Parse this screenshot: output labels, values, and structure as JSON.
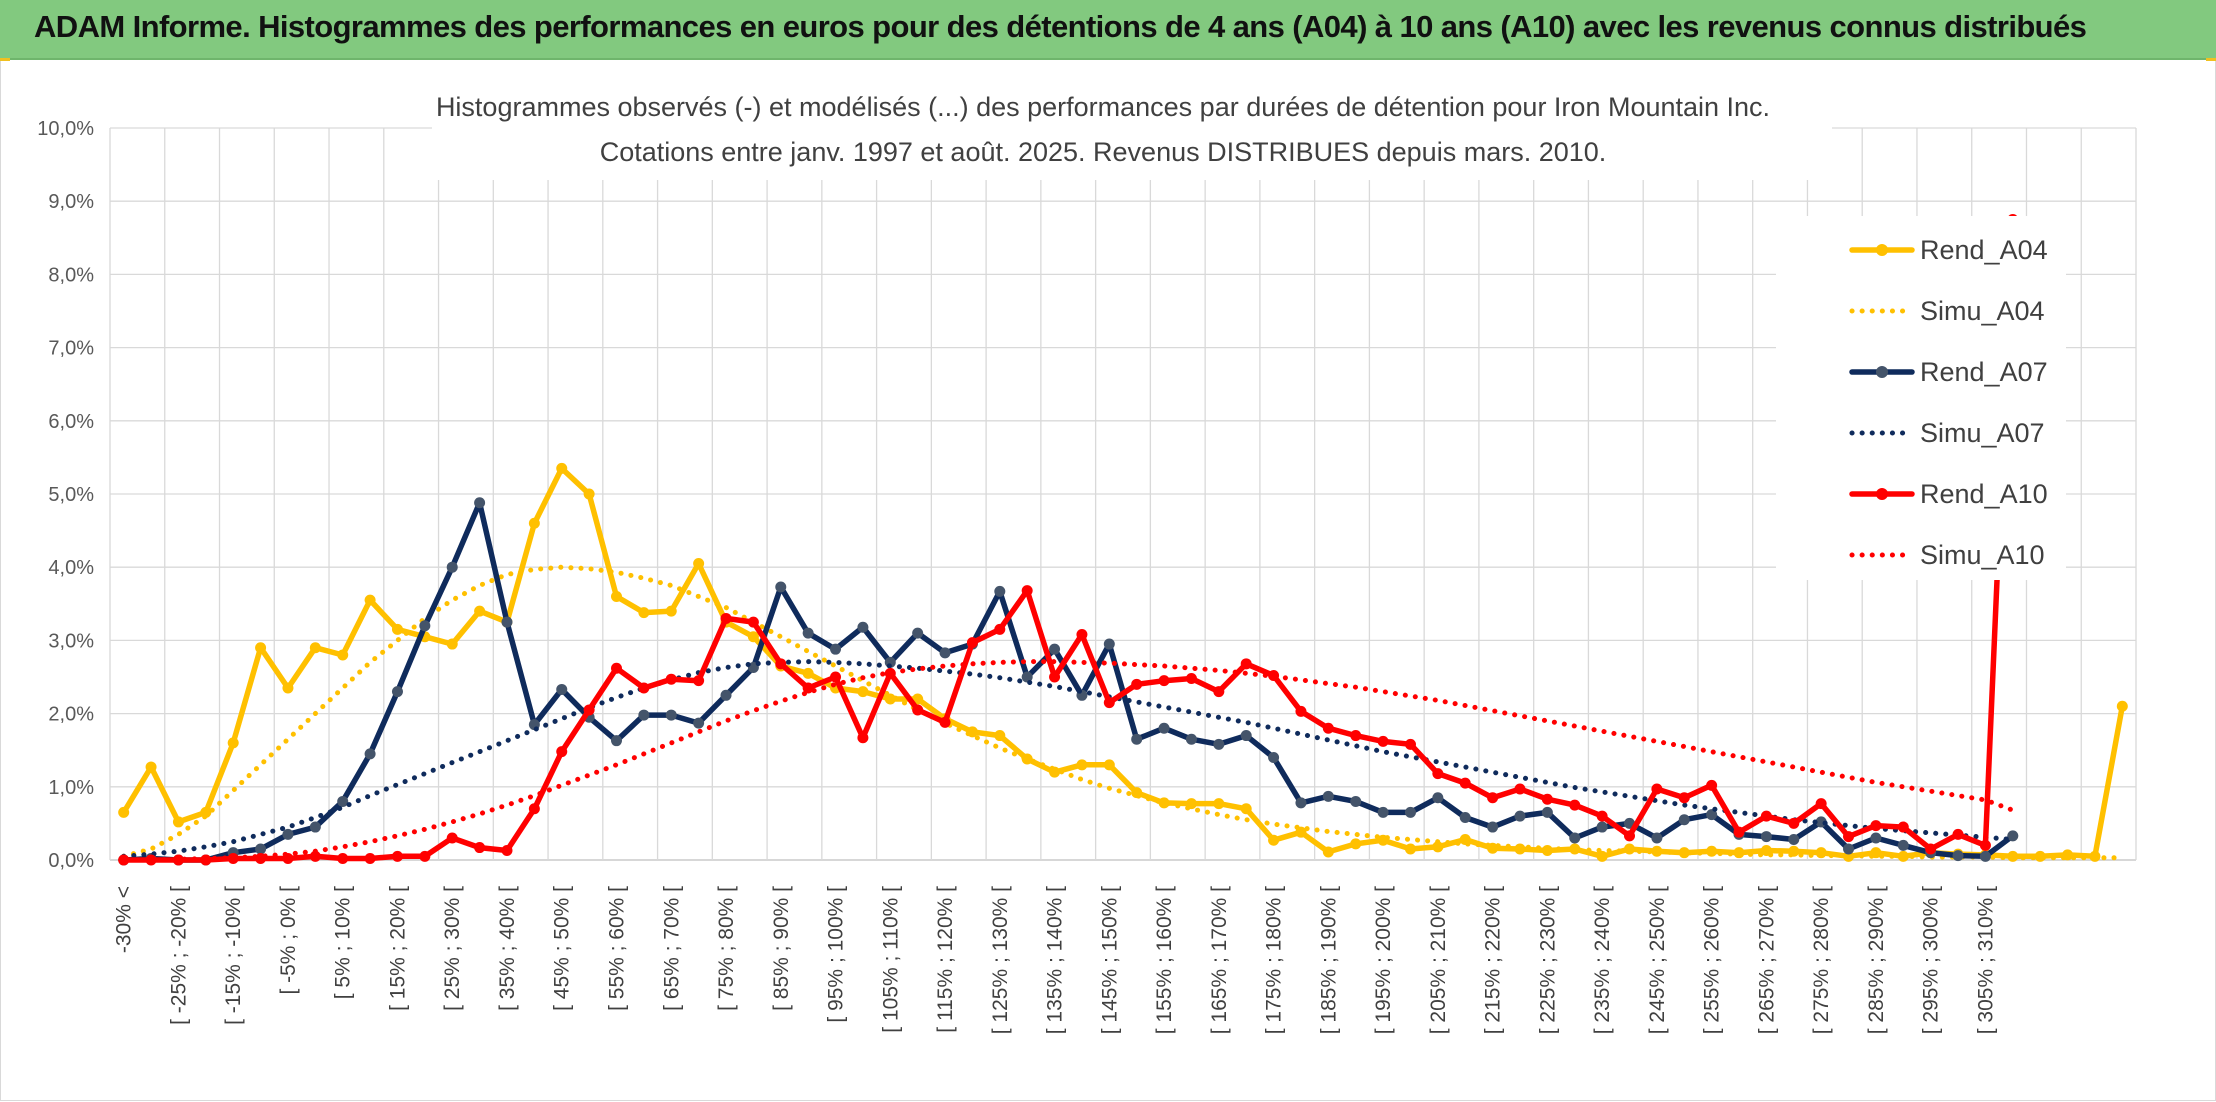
{
  "header": {
    "title": "ADAM Informe. Histogrammes des performances en euros pour des détentions de 4 ans (A04) à 10 ans (A10) avec les revenus connus distribués"
  },
  "chart_data": {
    "type": "line",
    "title": "Histogrammes observés (-) et modélisés (...) des performances par durées de détention pour Iron Mountain Inc.",
    "subtitle": "Cotations entre janv. 1997 et août. 2025. Revenus DISTRIBUES depuis mars. 2010.",
    "xlabel": "",
    "ylabel": "",
    "ylim": [
      0,
      10
    ],
    "yticks": [
      "0,0%",
      "1,0%",
      "2,0%",
      "3,0%",
      "4,0%",
      "5,0%",
      "6,0%",
      "7,0%",
      "8,0%",
      "9,0%",
      "10,0%"
    ],
    "grid": true,
    "legend_position": "right",
    "xtick_labels": [
      "-30% <",
      "[ -25% ; -20% [",
      "[ -15% ; -10% [",
      "[ -5% ; 0% [",
      "[ 5% ; 10% [",
      "[ 15% ; 20% [",
      "[ 25% ; 30% [",
      "[ 35% ; 40% [",
      "[ 45% ; 50% [",
      "[ 55% ; 60% [",
      "[ 65% ; 70% [",
      "[ 75% ; 80% [",
      "[ 85% ; 90% [",
      "[ 95% ; 100% [",
      "[ 105% ; 110% [",
      "[ 115% ; 120% [",
      "[ 125% ; 130% [",
      "[ 135% ; 140% [",
      "[ 145% ; 150% [",
      "[ 155% ; 160% [",
      "[ 165% ; 170% [",
      "[ 175% ; 180% [",
      "[ 185% ; 190% [",
      "[ 195% ; 200% [",
      "[ 205% ; 210% [",
      "[ 215% ; 220% [",
      "[ 225% ; 230% [",
      "[ 235% ; 240% [",
      "[ 245% ; 250% [",
      "[ 255% ; 260% [",
      "[ 265% ; 270% [",
      "[ 275% ; 280% [",
      "[ 285% ; 290% [",
      "[ 295% ; 300% [",
      "[ 305% ; 310% ["
    ],
    "series": [
      {
        "name": "Rend_A04",
        "style": "solid",
        "color": "#ffc000",
        "values": [
          0.65,
          1.27,
          0.52,
          0.65,
          1.6,
          2.9,
          2.35,
          2.9,
          2.8,
          3.55,
          3.15,
          3.05,
          2.95,
          3.4,
          3.25,
          4.6,
          5.35,
          5.0,
          3.6,
          3.38,
          3.4,
          4.05,
          3.25,
          3.05,
          2.65,
          2.55,
          2.35,
          2.3,
          2.2,
          2.2,
          1.93,
          1.75,
          1.7,
          1.38,
          1.2,
          1.3,
          1.3,
          0.92,
          0.78,
          0.77,
          0.77,
          0.7,
          0.27,
          0.38,
          0.11,
          0.22,
          0.27,
          0.15,
          0.18,
          0.28,
          0.16,
          0.15,
          0.13,
          0.15,
          0.05,
          0.15,
          0.12,
          0.1,
          0.12,
          0.1,
          0.13,
          0.12,
          0.1,
          0.05,
          0.1,
          0.05,
          0.1,
          0.08,
          0.07,
          0.05,
          0.05,
          0.07,
          0.05,
          2.1
        ]
      },
      {
        "name": "Simu_A04",
        "style": "dotted",
        "color": "#ffc000",
        "values": [
          0.05,
          0.15,
          0.35,
          0.6,
          0.95,
          1.3,
          1.65,
          2.0,
          2.35,
          2.7,
          3.0,
          3.3,
          3.55,
          3.75,
          3.9,
          3.97,
          4.0,
          3.98,
          3.93,
          3.85,
          3.75,
          3.6,
          3.45,
          3.25,
          3.05,
          2.85,
          2.65,
          2.45,
          2.25,
          2.05,
          1.87,
          1.7,
          1.53,
          1.38,
          1.24,
          1.1,
          0.98,
          0.88,
          0.78,
          0.7,
          0.62,
          0.55,
          0.49,
          0.44,
          0.39,
          0.35,
          0.31,
          0.28,
          0.25,
          0.22,
          0.2,
          0.18,
          0.16,
          0.14,
          0.13,
          0.12,
          0.11,
          0.1,
          0.09,
          0.08,
          0.07,
          0.07,
          0.06,
          0.06,
          0.05,
          0.05,
          0.04,
          0.04,
          0.04,
          0.03,
          0.03,
          0.03,
          0.03,
          0.03
        ]
      },
      {
        "name": "Rend_A07",
        "style": "solid",
        "color": "#0f2b5c",
        "values": [
          0.0,
          0.02,
          0.0,
          0.0,
          0.1,
          0.15,
          0.35,
          0.45,
          0.8,
          1.45,
          2.3,
          3.2,
          4.0,
          4.88,
          3.25,
          1.85,
          2.33,
          1.95,
          1.63,
          1.98,
          1.98,
          1.87,
          2.25,
          2.63,
          3.73,
          3.1,
          2.88,
          3.18,
          2.7,
          3.1,
          2.83,
          2.95,
          3.67,
          2.5,
          2.88,
          2.25,
          2.95,
          1.65,
          1.8,
          1.65,
          1.58,
          1.7,
          1.4,
          0.78,
          0.87,
          0.8,
          0.65,
          0.65,
          0.85,
          0.58,
          0.45,
          0.6,
          0.65,
          0.3,
          0.45,
          0.5,
          0.3,
          0.55,
          0.62,
          0.35,
          0.32,
          0.28,
          0.52,
          0.15,
          0.3,
          0.2,
          0.1,
          0.06,
          0.05,
          0.33,
          null,
          null,
          null,
          null
        ]
      },
      {
        "name": "Simu_A07",
        "style": "dotted",
        "color": "#0f2b5c",
        "values": [
          0.05,
          0.08,
          0.12,
          0.18,
          0.25,
          0.35,
          0.45,
          0.58,
          0.72,
          0.88,
          1.03,
          1.18,
          1.33,
          1.48,
          1.63,
          1.78,
          1.93,
          2.08,
          2.22,
          2.35,
          2.46,
          2.56,
          2.63,
          2.68,
          2.7,
          2.71,
          2.7,
          2.68,
          2.65,
          2.62,
          2.58,
          2.54,
          2.49,
          2.43,
          2.37,
          2.3,
          2.23,
          2.16,
          2.09,
          2.02,
          1.95,
          1.88,
          1.8,
          1.72,
          1.64,
          1.56,
          1.48,
          1.41,
          1.34,
          1.27,
          1.2,
          1.13,
          1.06,
          0.99,
          0.93,
          0.87,
          0.81,
          0.75,
          0.7,
          0.65,
          0.6,
          0.55,
          0.51,
          0.47,
          0.43,
          0.4,
          0.37,
          0.34,
          0.31,
          0.28,
          null,
          null,
          null,
          null
        ]
      },
      {
        "name": "Rend_A10",
        "style": "solid",
        "color": "#ff0000",
        "values": [
          0.0,
          0.0,
          0.0,
          0.0,
          0.02,
          0.02,
          0.02,
          0.05,
          0.02,
          0.02,
          0.05,
          0.05,
          0.3,
          0.17,
          0.13,
          0.7,
          1.48,
          2.05,
          2.62,
          2.35,
          2.47,
          2.45,
          3.3,
          3.25,
          2.68,
          2.35,
          2.5,
          1.67,
          2.55,
          2.05,
          1.88,
          2.97,
          3.15,
          3.68,
          2.5,
          3.08,
          2.15,
          2.4,
          2.45,
          2.48,
          2.3,
          2.68,
          2.52,
          2.03,
          1.8,
          1.7,
          1.62,
          1.58,
          1.18,
          1.05,
          0.85,
          0.97,
          0.83,
          0.75,
          0.6,
          0.33,
          0.97,
          0.85,
          1.02,
          0.38,
          0.6,
          0.5,
          0.77,
          0.32,
          0.47,
          0.45,
          0.15,
          0.35,
          0.2,
          8.75,
          null,
          null,
          null,
          null
        ]
      },
      {
        "name": "Simu_A10",
        "style": "dotted",
        "color": "#ff0000",
        "values": [
          0.0,
          0.0,
          0.01,
          0.02,
          0.03,
          0.05,
          0.08,
          0.12,
          0.18,
          0.25,
          0.33,
          0.42,
          0.52,
          0.63,
          0.75,
          0.88,
          1.02,
          1.16,
          1.3,
          1.45,
          1.6,
          1.75,
          1.9,
          2.04,
          2.17,
          2.29,
          2.4,
          2.49,
          2.56,
          2.61,
          2.65,
          2.68,
          2.7,
          2.71,
          2.71,
          2.7,
          2.69,
          2.67,
          2.65,
          2.62,
          2.59,
          2.55,
          2.51,
          2.46,
          2.41,
          2.36,
          2.3,
          2.24,
          2.18,
          2.11,
          2.04,
          1.97,
          1.9,
          1.83,
          1.76,
          1.69,
          1.62,
          1.55,
          1.48,
          1.41,
          1.34,
          1.27,
          1.2,
          1.13,
          1.06,
          1.0,
          0.94,
          0.88,
          0.82,
          0.68,
          null,
          null,
          null,
          null
        ]
      }
    ]
  }
}
